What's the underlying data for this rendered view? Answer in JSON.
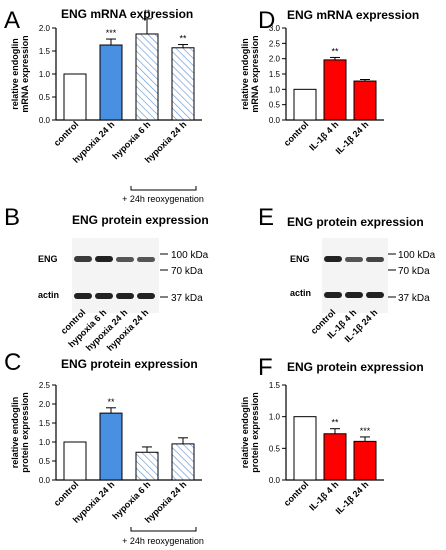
{
  "colors": {
    "blue": "#4a90e2",
    "hatch": "#5b8fd0",
    "red": "#ff0000",
    "white": "#ffffff",
    "axis": "#000000"
  },
  "panels": {
    "A": {
      "letter": "A",
      "title": "ENG mRNA expression"
    },
    "B": {
      "letter": "B",
      "title": "ENG protein expression",
      "band_labels": [
        "ENG",
        "actin"
      ],
      "markers": [
        "100 kDa",
        "70 kDa",
        "37 kDa"
      ],
      "lanes": [
        "control",
        "hypoxia 6 h",
        "hypoxia 24 h",
        "hypoxia 24 h"
      ]
    },
    "C": {
      "letter": "C",
      "title": "ENG protein expression"
    },
    "D": {
      "letter": "D",
      "title": "ENG mRNA expression"
    },
    "E": {
      "letter": "E",
      "title": "ENG protein expression",
      "band_labels": [
        "ENG",
        "actin"
      ],
      "markers": [
        "100 kDa",
        "70 kDa",
        "37 kDa"
      ],
      "lanes": [
        "control",
        "IL-1β 4 h",
        "IL-1β 24 h"
      ]
    },
    "F": {
      "letter": "F",
      "title": "ENG protein expression"
    }
  },
  "bracket_label": "+ 24h reoxygenation",
  "chart_data": [
    {
      "id": "A",
      "type": "bar",
      "categories": [
        "control",
        "hypoxia 24 h",
        "hypoxia 6 h",
        "hypoxia 24 h"
      ],
      "values": [
        1.0,
        1.63,
        1.87,
        1.57
      ],
      "errors": [
        0,
        0.13,
        0.33,
        0.07
      ],
      "fills": [
        "white",
        "blue",
        "hatch",
        "hatch"
      ],
      "significance": [
        "",
        "***",
        "**",
        "**"
      ],
      "ylabel": "relative endoglin mRNA expression",
      "ylim": [
        0,
        2.0
      ],
      "yticks": [
        "0.0",
        "0.5",
        "1.0",
        "1.5",
        "2.0"
      ]
    },
    {
      "id": "C",
      "type": "bar",
      "categories": [
        "control",
        "hypoxia 24 h",
        "hypoxia 6 h",
        "hypoxia 24 h"
      ],
      "values": [
        1.0,
        1.76,
        0.73,
        0.95
      ],
      "errors": [
        0,
        0.14,
        0.14,
        0.16
      ],
      "fills": [
        "white",
        "blue",
        "hatch",
        "hatch"
      ],
      "significance": [
        "",
        "**",
        "",
        ""
      ],
      "ylabel": "relative endoglin protein expression",
      "ylim": [
        0,
        2.5
      ],
      "yticks": [
        "0.0",
        "0.5",
        "1.0",
        "1.5",
        "2.0",
        "2.5"
      ]
    },
    {
      "id": "D",
      "type": "bar",
      "categories": [
        "control",
        "IL-1β 4 h",
        "IL-1β 24 h"
      ],
      "values": [
        1.0,
        1.96,
        1.27
      ],
      "errors": [
        0,
        0.08,
        0.05
      ],
      "fills": [
        "white",
        "red",
        "red"
      ],
      "significance": [
        "",
        "**",
        ""
      ],
      "ylabel": "relative endoglin mRNA expression",
      "ylim": [
        0,
        3.0
      ],
      "yticks": [
        "0.0",
        "0.5",
        "1.0",
        "1.5",
        "2.0",
        "2.5",
        "3.0"
      ]
    },
    {
      "id": "F",
      "type": "bar",
      "categories": [
        "control",
        "IL-1β 4 h",
        "IL-1β 24 h"
      ],
      "values": [
        1.0,
        0.73,
        0.61
      ],
      "errors": [
        0,
        0.08,
        0.07
      ],
      "fills": [
        "white",
        "red",
        "red"
      ],
      "significance": [
        "",
        "**",
        "***"
      ],
      "ylabel": "relative endoglin protein expression",
      "ylim": [
        0,
        1.5
      ],
      "yticks": [
        "0.0",
        "0.5",
        "1.0",
        "1.5"
      ]
    }
  ]
}
